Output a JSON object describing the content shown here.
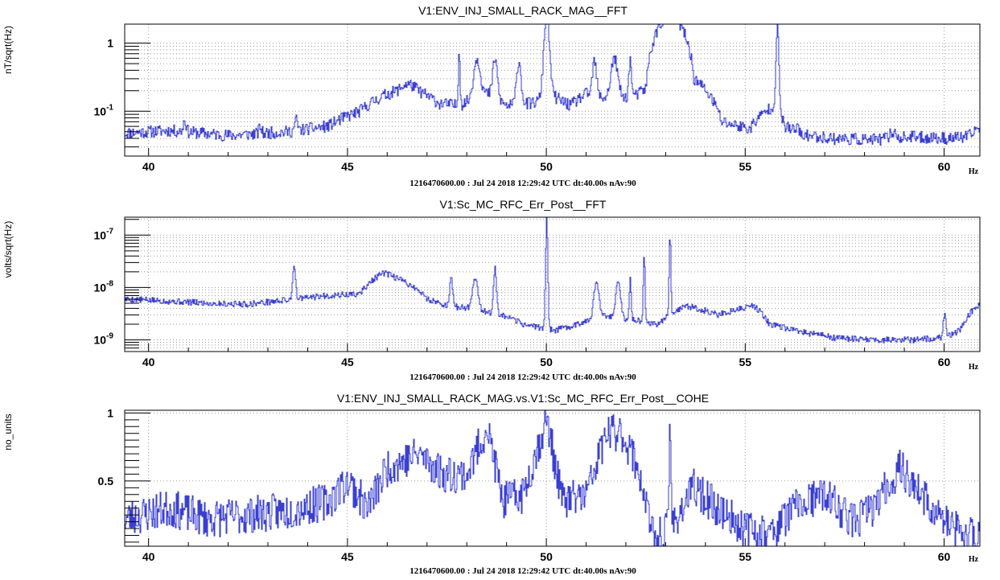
{
  "chart_data": [
    {
      "type": "line",
      "title": "V1:ENV_INJ_SMALL_RACK_MAG__FFT",
      "ylabel": "nT/sqrt(Hz)",
      "x_unit": "Hz",
      "footer": "1216470600.00 : Jul 24 2018 12:29:42 UTC dt:40.00s nAv:90",
      "y_scale": "log",
      "xlim": [
        39.4,
        60.9
      ],
      "ylim": [
        0.022,
        1.9
      ],
      "grid": true,
      "x_ticks": [
        "40",
        "45",
        "50",
        "55",
        "60"
      ],
      "y_ticks": [
        {
          "label": "1",
          "value": 1
        },
        {
          "label": "10^-1",
          "value": 0.1
        }
      ],
      "baseline": [
        [
          39.4,
          0.048
        ],
        [
          40.5,
          0.052
        ],
        [
          42,
          0.044
        ],
        [
          43.5,
          0.05
        ],
        [
          44.5,
          0.06
        ],
        [
          45.3,
          0.1
        ],
        [
          46,
          0.18
        ],
        [
          46.6,
          0.22
        ],
        [
          47.3,
          0.13
        ],
        [
          47.8,
          0.12
        ],
        [
          48.5,
          0.18
        ],
        [
          49,
          0.12
        ],
        [
          49.6,
          0.13
        ],
        [
          50.2,
          0.16
        ],
        [
          50.6,
          0.12
        ],
        [
          51,
          0.18
        ],
        [
          51.6,
          0.15
        ],
        [
          52.2,
          0.16
        ],
        [
          52.5,
          0.22
        ],
        [
          53.1,
          3.0
        ],
        [
          53.7,
          0.3
        ],
        [
          54.4,
          0.07
        ],
        [
          55.1,
          0.055
        ],
        [
          55.7,
          0.12
        ],
        [
          56.0,
          0.06
        ],
        [
          56.4,
          0.045
        ],
        [
          57.2,
          0.04
        ],
        [
          58.2,
          0.038
        ],
        [
          59.2,
          0.042
        ],
        [
          60,
          0.04
        ],
        [
          60.6,
          0.042
        ],
        [
          60.9,
          0.06
        ]
      ],
      "peaks": [
        [
          40.9,
          0.075,
          0.05
        ],
        [
          42.8,
          0.06,
          0.04
        ],
        [
          43.7,
          0.075,
          0.05
        ],
        [
          46.5,
          0.25,
          0.18
        ],
        [
          47.8,
          0.85,
          0.03
        ],
        [
          48.25,
          0.6,
          0.12
        ],
        [
          48.7,
          0.6,
          0.08
        ],
        [
          49.3,
          0.55,
          0.08
        ],
        [
          50.0,
          3.0,
          0.1
        ],
        [
          51.2,
          0.55,
          0.07
        ],
        [
          51.7,
          0.6,
          0.12
        ],
        [
          52.1,
          0.55,
          0.05
        ],
        [
          55.8,
          2.0,
          0.05
        ],
        [
          56.3,
          0.065,
          0.03
        ],
        [
          58.7,
          0.05,
          0.1
        ]
      ],
      "noise": 0.18,
      "seed": 11
    },
    {
      "type": "line",
      "title": "V1:Sc_MC_RFC_Err_Post__FFT",
      "ylabel": "volts/sqrt(Hz)",
      "x_unit": "Hz",
      "footer": "1216470600.00 : Jul 24 2018 12:29:42 UTC dt:40.00s nAv:90",
      "y_scale": "log",
      "xlim": [
        39.4,
        60.9
      ],
      "ylim": [
        6e-10,
        2.2e-07
      ],
      "grid": true,
      "x_ticks": [
        "40",
        "45",
        "50",
        "55",
        "60"
      ],
      "y_ticks": [
        {
          "label": "10^-7",
          "value": 1e-07
        },
        {
          "label": "10^-8",
          "value": 1e-08
        },
        {
          "label": "10^-9",
          "value": 1e-09
        }
      ],
      "baseline": [
        [
          39.4,
          6e-09
        ],
        [
          40.5,
          5.5e-09
        ],
        [
          41.5,
          5e-09
        ],
        [
          42.5,
          4.8e-09
        ],
        [
          43.5,
          5.8e-09
        ],
        [
          44.5,
          7e-09
        ],
        [
          45.3,
          7.5e-09
        ],
        [
          45.9,
          1.9e-08
        ],
        [
          46.5,
          1.2e-08
        ],
        [
          47.0,
          6e-09
        ],
        [
          47.5,
          4.5e-09
        ],
        [
          48.0,
          4e-09
        ],
        [
          48.8,
          3e-09
        ],
        [
          49.4,
          2e-09
        ],
        [
          50.2,
          1.5e-09
        ],
        [
          50.8,
          2e-09
        ],
        [
          51.3,
          3e-09
        ],
        [
          52.0,
          2.5e-09
        ],
        [
          52.8,
          2e-09
        ],
        [
          53.5,
          4.5e-09
        ],
        [
          54.3,
          3e-09
        ],
        [
          55.2,
          4.5e-09
        ],
        [
          55.6,
          2e-09
        ],
        [
          56.2,
          1.5e-09
        ],
        [
          57.2,
          1.1e-09
        ],
        [
          58.2,
          1e-09
        ],
        [
          59.2,
          1e-09
        ],
        [
          60.0,
          1.1e-09
        ],
        [
          60.4,
          1.5e-09
        ],
        [
          60.9,
          5e-09
        ]
      ],
      "peaks": [
        [
          43.65,
          2.8e-08,
          0.05
        ],
        [
          47.6,
          1.5e-08,
          0.05
        ],
        [
          48.2,
          1.5e-08,
          0.1
        ],
        [
          48.7,
          2.4e-08,
          0.05
        ],
        [
          50.0,
          2.2e-07,
          0.04
        ],
        [
          51.25,
          1.4e-08,
          0.08
        ],
        [
          51.8,
          1.4e-08,
          0.08
        ],
        [
          52.1,
          1.6e-08,
          0.03
        ],
        [
          52.45,
          4.5e-08,
          0.03
        ],
        [
          53.1,
          1.1e-07,
          0.03
        ],
        [
          56.0,
          1.3e-09,
          0.05
        ],
        [
          60.0,
          3e-09,
          0.05
        ]
      ],
      "noise": 0.12,
      "seed": 5
    },
    {
      "type": "line",
      "title": "V1:ENV_INJ_SMALL_RACK_MAG.vs.V1:Sc_MC_RFC_Err_Post__COHE",
      "ylabel": "no_units",
      "x_unit": "Hz",
      "footer": "1216470600.00 : Jul 24 2018 12:29:42 UTC dt:40.00s nAv:90",
      "y_scale": "linear",
      "xlim": [
        39.4,
        60.9
      ],
      "ylim": [
        0.02,
        1.02
      ],
      "grid": true,
      "x_ticks": [
        "40",
        "45",
        "50",
        "55",
        "60"
      ],
      "y_ticks": [
        {
          "label": "1",
          "value": 1
        },
        {
          "label": "0.5",
          "value": 0.5
        }
      ],
      "baseline": [
        [
          39.4,
          0.22
        ],
        [
          40.5,
          0.3
        ],
        [
          41.5,
          0.22
        ],
        [
          42.5,
          0.25
        ],
        [
          43.5,
          0.28
        ],
        [
          44.5,
          0.35
        ],
        [
          45.0,
          0.5
        ],
        [
          45.5,
          0.3
        ],
        [
          46.0,
          0.6
        ],
        [
          46.8,
          0.7
        ],
        [
          47.4,
          0.55
        ],
        [
          48.0,
          0.55
        ],
        [
          48.5,
          0.9
        ],
        [
          48.9,
          0.35
        ],
        [
          49.4,
          0.4
        ],
        [
          50.0,
          0.95
        ],
        [
          50.4,
          0.35
        ],
        [
          51.0,
          0.4
        ],
        [
          51.5,
          0.85
        ],
        [
          51.9,
          0.85
        ],
        [
          52.3,
          0.6
        ],
        [
          52.7,
          0.05
        ],
        [
          53.2,
          0.2
        ],
        [
          53.7,
          0.45
        ],
        [
          54.3,
          0.3
        ],
        [
          55.0,
          0.15
        ],
        [
          55.6,
          0.1
        ],
        [
          56.2,
          0.3
        ],
        [
          57.0,
          0.4
        ],
        [
          57.7,
          0.2
        ],
        [
          58.2,
          0.3
        ],
        [
          58.9,
          0.6
        ],
        [
          59.4,
          0.4
        ],
        [
          60.0,
          0.2
        ],
        [
          60.5,
          0.1
        ],
        [
          60.9,
          0.1
        ]
      ],
      "peaks": [
        [
          53.1,
          0.96,
          0.03
        ]
      ],
      "noise": 0.28,
      "seed": 23
    }
  ]
}
